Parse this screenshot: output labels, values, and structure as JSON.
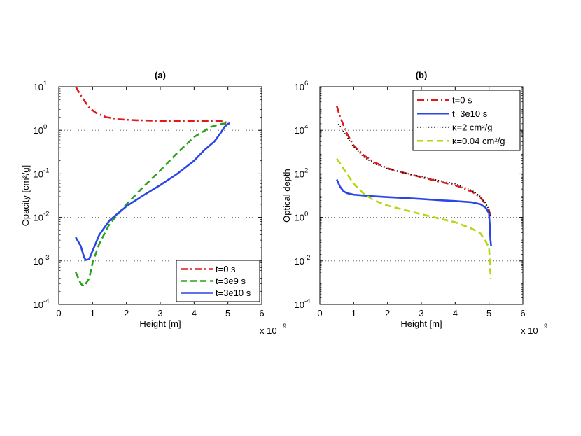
{
  "chart_data": [
    {
      "type": "line",
      "panel": "a",
      "title": "(a)",
      "xlabel": "Height [m]",
      "ylabel": "Opacity [cm²/g]",
      "xscale_label": "x 10",
      "xscale_exp": "9",
      "xlim": [
        0,
        6
      ],
      "ylim_log10": [
        -4,
        1
      ],
      "xticks": [
        "0",
        "1",
        "2",
        "3",
        "4",
        "5",
        "6"
      ],
      "yticks": [
        {
          "base": "10",
          "exp": "-4"
        },
        {
          "base": "10",
          "exp": "-3"
        },
        {
          "base": "10",
          "exp": "-2"
        },
        {
          "base": "10",
          "exp": "-1"
        },
        {
          "base": "10",
          "exp": "0"
        },
        {
          "base": "10",
          "exp": "1"
        }
      ],
      "grid": "y-dotted",
      "legend_position": "bottom-right",
      "series": [
        {
          "name": "t=0 s",
          "color": "#e0191b",
          "dash": "dashdot",
          "x": [
            0.5,
            0.7,
            0.9,
            1.1,
            1.4,
            1.8,
            2.3,
            3.0,
            4.0,
            4.8,
            5.05
          ],
          "y": [
            10,
            5.5,
            3.3,
            2.5,
            2.0,
            1.78,
            1.7,
            1.65,
            1.63,
            1.62,
            1.45
          ]
        },
        {
          "name": "t=3e9 s",
          "color": "#29a319",
          "dash": "dashed",
          "x": [
            0.5,
            0.65,
            0.75,
            0.9,
            1.0,
            1.2,
            1.5,
            2.0,
            2.5,
            3.0,
            3.5,
            4.0,
            4.5,
            4.8,
            5.05
          ],
          "y": [
            0.00055,
            0.0003,
            0.00026,
            0.0004,
            0.0009,
            0.0025,
            0.007,
            0.02,
            0.05,
            0.12,
            0.3,
            0.7,
            1.2,
            1.4,
            1.45
          ]
        },
        {
          "name": "t=3e10 s",
          "color": "#2a46e6",
          "dash": "solid",
          "x": [
            0.5,
            0.65,
            0.75,
            0.8,
            0.9,
            1.0,
            1.2,
            1.5,
            2.0,
            2.5,
            3.0,
            3.5,
            4.0,
            4.3,
            4.6,
            4.8,
            4.9,
            5.0,
            5.05
          ],
          "y": [
            0.0035,
            0.0022,
            0.0012,
            0.00105,
            0.0011,
            0.0017,
            0.004,
            0.0085,
            0.018,
            0.032,
            0.055,
            0.1,
            0.2,
            0.35,
            0.55,
            0.9,
            1.2,
            1.4,
            1.45
          ]
        }
      ]
    },
    {
      "type": "line",
      "panel": "b",
      "title": "(b)",
      "xlabel": "Height [m]",
      "ylabel": "Optical depth",
      "xscale_label": "x 10",
      "xscale_exp": "9",
      "xlim": [
        0,
        6
      ],
      "ylim_log10": [
        -4,
        6
      ],
      "xticks": [
        "0",
        "1",
        "2",
        "3",
        "4",
        "5",
        "6"
      ],
      "yticks": [
        {
          "base": "10",
          "exp": "-4"
        },
        {
          "base": "10",
          "exp": "-2"
        },
        {
          "base": "10",
          "exp": "0"
        },
        {
          "base": "10",
          "exp": "2"
        },
        {
          "base": "10",
          "exp": "4"
        },
        {
          "base": "10",
          "exp": "6"
        }
      ],
      "grid": "y-dotted",
      "legend_position": "top-right",
      "series": [
        {
          "name": "t=0 s",
          "color": "#e0191b",
          "dash": "dashdot",
          "x": [
            0.5,
            0.6,
            0.8,
            1.0,
            1.3,
            1.6,
            2.0,
            2.5,
            3.0,
            3.5,
            4.0,
            4.5,
            4.75,
            4.9,
            5.0,
            5.05
          ],
          "y": [
            130000,
            40000,
            7000,
            2000,
            700,
            350,
            180,
            110,
            70,
            45,
            30,
            15,
            8,
            4,
            2,
            1
          ]
        },
        {
          "name": "t=3e10 s",
          "color": "#2a46e6",
          "dash": "solid",
          "x": [
            0.5,
            0.6,
            0.7,
            0.8,
            1.0,
            1.5,
            2.0,
            2.5,
            3.0,
            3.5,
            4.0,
            4.5,
            4.75,
            4.9,
            5.0,
            5.02,
            5.04,
            5.06
          ],
          "y": [
            55,
            25,
            16,
            13,
            11,
            9.5,
            8.5,
            7.8,
            7,
            6.2,
            5.6,
            4.9,
            4.0,
            2.8,
            1.5,
            0.5,
            0.1,
            0.05
          ]
        },
        {
          "name": "κ=2 cm²/g",
          "color": "#000000",
          "dash": "dotted",
          "x": [
            0.5,
            0.6,
            0.8,
            1.0,
            1.3,
            1.6,
            2.0,
            2.5,
            3.0,
            3.5,
            4.0,
            4.5,
            4.75,
            4.9,
            5.0,
            5.05
          ],
          "y": [
            25000,
            15000,
            5000,
            1700,
            600,
            300,
            170,
            110,
            75,
            50,
            35,
            17,
            9,
            4.5,
            2.2,
            1
          ]
        },
        {
          "name": "κ=0.04 cm²/g",
          "color": "#b6d60d",
          "dash": "dashed",
          "x": [
            0.5,
            0.6,
            0.8,
            1.0,
            1.3,
            1.6,
            2.0,
            2.5,
            3.0,
            3.5,
            4.0,
            4.5,
            4.75,
            4.9,
            5.0,
            5.05
          ],
          "y": [
            500,
            300,
            100,
            35,
            12,
            6,
            3.5,
            2.2,
            1.4,
            0.9,
            0.6,
            0.3,
            0.18,
            0.08,
            0.04,
            0.0015
          ]
        }
      ]
    }
  ]
}
